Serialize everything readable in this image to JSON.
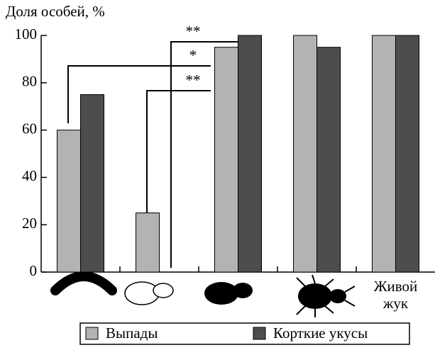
{
  "chart_data": {
    "type": "bar",
    "y_label": "Доля особей, %",
    "categories": [
      null,
      null,
      null,
      null,
      "Живой жук"
    ],
    "series": [
      {
        "name": "Выпады",
        "color": "#b3b3b3",
        "values": [
          60,
          25,
          95,
          100,
          100
        ]
      },
      {
        "name": "Корткие укусы",
        "color": "#4d4d4d",
        "values": [
          75,
          0,
          100,
          95,
          100
        ]
      }
    ],
    "ylim": [
      0,
      100
    ],
    "yticks": [
      0,
      20,
      40,
      60,
      80,
      100
    ],
    "annotations": [
      "**",
      "*",
      "**"
    ]
  }
}
